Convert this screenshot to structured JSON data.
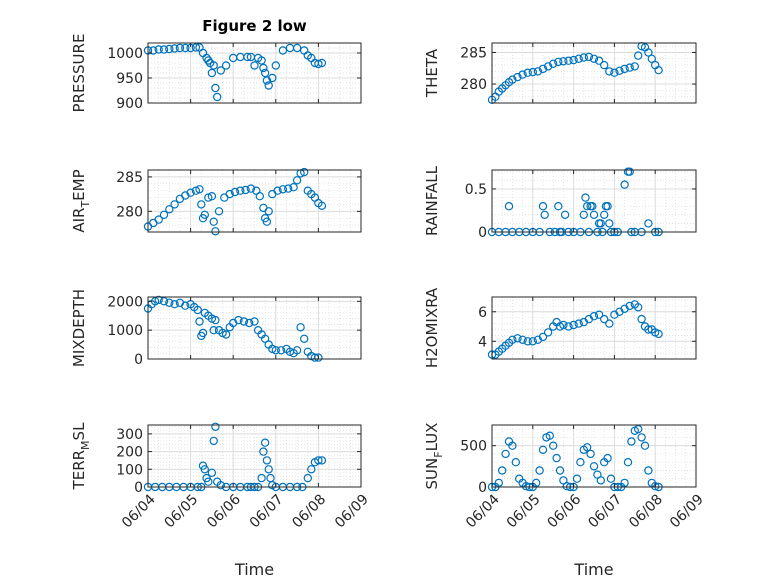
{
  "figure_title": "Figure 2 low",
  "marker_color": "#0072BD",
  "chart_data": [
    {
      "type": "scatter",
      "ylabel": "PRESSURE",
      "ylim": [
        900,
        1020
      ],
      "yticks": [
        900,
        950,
        1000
      ],
      "xticks_shown": false,
      "title": "Figure 2 low",
      "x": [
        "06/04 00:00",
        "06/04 03:00",
        "06/04 06:00",
        "06/04 09:00",
        "06/04 12:00",
        "06/04 15:00",
        "06/04 18:00",
        "06/04 21:00",
        "06/05 00:00",
        "06/05 03:00",
        "06/05 05:00",
        "06/05 07:00",
        "06/05 09:00",
        "06/05 10:00",
        "06/05 11:00",
        "06/05 12:00",
        "06/05 13:00",
        "06/05 14:00",
        "06/05 15:00",
        "06/05 17:00",
        "06/05 20:00",
        "06/06 00:00",
        "06/06 04:00",
        "06/06 08:00",
        "06/06 10:00",
        "06/06 12:00",
        "06/06 14:00",
        "06/06 16:00",
        "06/06 17:00",
        "06/06 18:00",
        "06/06 19:00",
        "06/06 20:00",
        "06/06 22:00",
        "06/07 00:00",
        "06/07 04:00",
        "06/07 08:00",
        "06/07 12:00",
        "06/07 16:00",
        "06/07 18:00",
        "06/07 20:00",
        "06/07 22:00",
        "06/08 00:00",
        "06/08 02:00"
      ],
      "y": [
        1005,
        1005,
        1007,
        1007,
        1008,
        1009,
        1010,
        1010,
        1010,
        1011,
        1011,
        1000,
        990,
        985,
        980,
        960,
        975,
        930,
        912,
        965,
        975,
        990,
        992,
        992,
        992,
        975,
        990,
        985,
        970,
        960,
        945,
        935,
        950,
        975,
        1005,
        1010,
        1010,
        1005,
        995,
        990,
        980,
        978,
        980
      ]
    },
    {
      "type": "scatter",
      "ylabel": "THETA",
      "ylim": [
        277,
        286.5
      ],
      "yticks": [
        280,
        285
      ],
      "xticks_shown": false,
      "x": [
        "06/04 00:00",
        "06/04 02:00",
        "06/04 04:00",
        "06/04 06:00",
        "06/04 08:00",
        "06/04 10:00",
        "06/04 12:00",
        "06/04 15:00",
        "06/04 18:00",
        "06/04 21:00",
        "06/05 00:00",
        "06/05 03:00",
        "06/05 06:00",
        "06/05 09:00",
        "06/05 12:00",
        "06/05 15:00",
        "06/05 18:00",
        "06/05 21:00",
        "06/06 00:00",
        "06/06 03:00",
        "06/06 06:00",
        "06/06 09:00",
        "06/06 12:00",
        "06/06 15:00",
        "06/06 18:00",
        "06/06 21:00",
        "06/07 00:00",
        "06/07 03:00",
        "06/07 06:00",
        "06/07 09:00",
        "06/07 12:00",
        "06/07 14:00",
        "06/07 16:00",
        "06/07 18:00",
        "06/07 20:00",
        "06/07 22:00",
        "06/08 00:00",
        "06/08 02:00"
      ],
      "y": [
        277.5,
        278,
        278.8,
        279.3,
        279.8,
        280.3,
        280.7,
        281.1,
        281.5,
        281.8,
        281.9,
        282,
        282.4,
        282.8,
        283.2,
        283.5,
        283.6,
        283.7,
        283.8,
        284,
        284.2,
        284.3,
        284,
        283.7,
        283,
        282,
        281.8,
        282.1,
        282.4,
        282.6,
        282.8,
        284.5,
        286,
        285.8,
        285,
        284,
        283,
        282.2
      ]
    },
    {
      "type": "scatter",
      "ylabel": "AIR_TEMP",
      "ylim": [
        277,
        286
      ],
      "yticks": [
        280,
        285
      ],
      "xticks_shown": false,
      "x": [
        "06/04 00:00",
        "06/04 03:00",
        "06/04 06:00",
        "06/04 09:00",
        "06/04 12:00",
        "06/04 15:00",
        "06/04 18:00",
        "06/04 21:00",
        "06/05 00:00",
        "06/05 03:00",
        "06/05 05:00",
        "06/05 06:00",
        "06/05 07:00",
        "06/05 08:00",
        "06/05 10:00",
        "06/05 12:00",
        "06/05 13:00",
        "06/05 14:00",
        "06/05 16:00",
        "06/05 19:00",
        "06/05 22:00",
        "06/06 01:00",
        "06/06 04:00",
        "06/06 07:00",
        "06/06 10:00",
        "06/06 13:00",
        "06/06 15:00",
        "06/06 17:00",
        "06/06 18:00",
        "06/06 19:00",
        "06/06 20:00",
        "06/06 22:00",
        "06/07 01:00",
        "06/07 04:00",
        "06/07 07:00",
        "06/07 10:00",
        "06/07 12:00",
        "06/07 14:00",
        "06/07 16:00",
        "06/07 18:00",
        "06/07 20:00",
        "06/07 22:00",
        "06/08 00:00",
        "06/08 02:00"
      ],
      "y": [
        277.8,
        278.3,
        278.8,
        279.5,
        280.3,
        281,
        281.8,
        282.3,
        282.7,
        283,
        283.2,
        281,
        279,
        279.5,
        282,
        282.2,
        278.5,
        277.1,
        280,
        282,
        282.5,
        282.8,
        283,
        283.1,
        283.3,
        283,
        282.2,
        280.5,
        279,
        278.5,
        280,
        282.5,
        283,
        283.2,
        283.3,
        283.5,
        284.5,
        285.5,
        285.7,
        283,
        282.5,
        282,
        281.2,
        280.8
      ]
    },
    {
      "type": "scatter",
      "ylabel": "RAINFALL",
      "ylim": [
        0,
        0.72
      ],
      "yticks": [
        0,
        0.5
      ],
      "xticks_shown": false,
      "x": [
        "06/04 00:00",
        "06/04 04:00",
        "06/04 08:00",
        "06/04 10:00",
        "06/04 12:00",
        "06/04 16:00",
        "06/04 20:00",
        "06/05 00:00",
        "06/05 04:00",
        "06/05 06:00",
        "06/05 07:00",
        "06/05 10:00",
        "06/05 13:00",
        "06/05 15:00",
        "06/05 16:00",
        "06/05 17:00",
        "06/05 19:00",
        "06/05 21:00",
        "06/06 00:00",
        "06/06 04:00",
        "06/06 06:00",
        "06/06 07:00",
        "06/06 08:00",
        "06/06 09:00",
        "06/06 10:00",
        "06/06 11:00",
        "06/06 12:00",
        "06/06 14:00",
        "06/06 15:00",
        "06/06 16:00",
        "06/06 17:00",
        "06/06 18:00",
        "06/06 19:00",
        "06/06 20:00",
        "06/06 21:00",
        "06/06 22:00",
        "06/07 00:00",
        "06/07 02:00",
        "06/07 06:00",
        "06/07 08:00",
        "06/07 09:00",
        "06/07 10:00",
        "06/07 12:00",
        "06/07 16:00",
        "06/07 20:00",
        "06/08 00:00",
        "06/08 02:00"
      ],
      "y": [
        0,
        0,
        0,
        0.3,
        0,
        0,
        0,
        0,
        0,
        0.3,
        0.2,
        0,
        0,
        0.3,
        0,
        0,
        0.2,
        0,
        0,
        0,
        0.2,
        0.4,
        0.3,
        0,
        0.3,
        0.3,
        0.2,
        0,
        0.1,
        0.1,
        0,
        0.2,
        0.3,
        0.3,
        0.1,
        0,
        0,
        0,
        0.55,
        0.7,
        0.7,
        0,
        0,
        0,
        0.1,
        0,
        0
      ]
    },
    {
      "type": "scatter",
      "ylabel": "MIXDEPTH",
      "ylim": [
        0,
        2150
      ],
      "yticks": [
        0,
        1000,
        2000
      ],
      "xticks_shown": false,
      "x": [
        "06/04 00:00",
        "06/04 02:00",
        "06/04 04:00",
        "06/04 06:00",
        "06/04 09:00",
        "06/04 12:00",
        "06/04 15:00",
        "06/04 18:00",
        "06/04 21:00",
        "06/05 00:00",
        "06/05 02:00",
        "06/05 04:00",
        "06/05 05:00",
        "06/05 06:00",
        "06/05 07:00",
        "06/05 08:00",
        "06/05 10:00",
        "06/05 12:00",
        "06/05 13:00",
        "06/05 14:00",
        "06/05 16:00",
        "06/05 18:00",
        "06/05 20:00",
        "06/05 22:00",
        "06/06 00:00",
        "06/06 03:00",
        "06/06 06:00",
        "06/06 09:00",
        "06/06 12:00",
        "06/06 14:00",
        "06/06 16:00",
        "06/06 18:00",
        "06/06 20:00",
        "06/06 22:00",
        "06/07 00:00",
        "06/07 03:00",
        "06/07 06:00",
        "06/07 08:00",
        "06/07 10:00",
        "06/07 12:00",
        "06/07 14:00",
        "06/07 16:00",
        "06/07 18:00",
        "06/07 20:00",
        "06/07 22:00",
        "06/08 00:00"
      ],
      "y": [
        1750,
        1900,
        2000,
        2050,
        2000,
        1950,
        1900,
        1950,
        1850,
        1900,
        1800,
        1700,
        1300,
        800,
        900,
        1600,
        1500,
        1400,
        1000,
        1350,
        1000,
        900,
        850,
        1100,
        1250,
        1350,
        1300,
        1250,
        1300,
        1000,
        850,
        700,
        500,
        350,
        300,
        300,
        350,
        250,
        200,
        300,
        1100,
        700,
        250,
        100,
        50,
        50
      ]
    },
    {
      "type": "scatter",
      "ylabel": "H2OMIXRA",
      "ylim": [
        2.8,
        7
      ],
      "yticks": [
        4,
        6
      ],
      "xticks_shown": false,
      "x": [
        "06/04 00:00",
        "06/04 02:00",
        "06/04 04:00",
        "06/04 06:00",
        "06/04 08:00",
        "06/04 10:00",
        "06/04 12:00",
        "06/04 15:00",
        "06/04 18:00",
        "06/04 21:00",
        "06/05 00:00",
        "06/05 03:00",
        "06/05 06:00",
        "06/05 09:00",
        "06/05 12:00",
        "06/05 14:00",
        "06/05 16:00",
        "06/05 18:00",
        "06/05 21:00",
        "06/06 00:00",
        "06/06 03:00",
        "06/06 06:00",
        "06/06 09:00",
        "06/06 12:00",
        "06/06 15:00",
        "06/06 18:00",
        "06/06 21:00",
        "06/07 00:00",
        "06/07 03:00",
        "06/07 06:00",
        "06/07 09:00",
        "06/07 12:00",
        "06/07 14:00",
        "06/07 16:00",
        "06/07 18:00",
        "06/07 20:00",
        "06/07 22:00",
        "06/08 00:00",
        "06/08 02:00"
      ],
      "y": [
        3.1,
        3.1,
        3.3,
        3.5,
        3.7,
        3.9,
        4.1,
        4.2,
        4.1,
        4.0,
        4.0,
        4.1,
        4.3,
        4.6,
        5.0,
        5.3,
        5.0,
        5.1,
        5.0,
        5.1,
        5.2,
        5.3,
        5.5,
        5.7,
        5.8,
        5.5,
        5.2,
        5.8,
        6.0,
        6.2,
        6.4,
        6.5,
        6.3,
        5.5,
        5.0,
        4.8,
        4.8,
        4.6,
        4.5
      ]
    },
    {
      "type": "scatter",
      "ylabel": "TERR_MSL",
      "ylim": [
        0,
        350
      ],
      "yticks": [
        0,
        100,
        200,
        300
      ],
      "xticks_shown": true,
      "x": [
        "06/04 00:00",
        "06/04 04:00",
        "06/04 08:00",
        "06/04 12:00",
        "06/04 16:00",
        "06/04 20:00",
        "06/05 00:00",
        "06/05 04:00",
        "06/05 06:00",
        "06/05 07:00",
        "06/05 08:00",
        "06/05 09:00",
        "06/05 10:00",
        "06/05 12:00",
        "06/05 13:00",
        "06/05 14:00",
        "06/05 15:00",
        "06/05 17:00",
        "06/05 20:00",
        "06/06 00:00",
        "06/06 04:00",
        "06/06 08:00",
        "06/06 10:00",
        "06/06 12:00",
        "06/06 14:00",
        "06/06 16:00",
        "06/06 17:00",
        "06/06 18:00",
        "06/06 19:00",
        "06/06 20:00",
        "06/06 21:00",
        "06/06 22:00",
        "06/07 00:00",
        "06/07 04:00",
        "06/07 08:00",
        "06/07 12:00",
        "06/07 15:00",
        "06/07 18:00",
        "06/07 20:00",
        "06/07 22:00",
        "06/08 00:00",
        "06/08 02:00"
      ],
      "y": [
        0,
        0,
        0,
        0,
        0,
        0,
        0,
        0,
        0,
        120,
        100,
        50,
        30,
        80,
        260,
        340,
        30,
        10,
        0,
        0,
        0,
        0,
        0,
        0,
        0,
        50,
        200,
        250,
        150,
        100,
        50,
        10,
        0,
        0,
        0,
        0,
        0,
        50,
        100,
        140,
        150,
        150
      ],
      "xticks": [
        "06/04",
        "06/05",
        "06/06",
        "06/07",
        "06/08",
        "06/09"
      ],
      "xlabel": "Time"
    },
    {
      "type": "scatter",
      "ylabel": "SUN_FLUX",
      "ylim": [
        0,
        750
      ],
      "yticks": [
        0,
        500
      ],
      "xticks_shown": true,
      "x": [
        "06/04 00:00",
        "06/04 02:00",
        "06/04 04:00",
        "06/04 06:00",
        "06/04 08:00",
        "06/04 10:00",
        "06/04 12:00",
        "06/04 14:00",
        "06/04 16:00",
        "06/04 18:00",
        "06/04 20:00",
        "06/04 22:00",
        "06/05 00:00",
        "06/05 02:00",
        "06/05 04:00",
        "06/05 06:00",
        "06/05 08:00",
        "06/05 10:00",
        "06/05 12:00",
        "06/05 14:00",
        "06/05 16:00",
        "06/05 18:00",
        "06/05 20:00",
        "06/05 22:00",
        "06/06 00:00",
        "06/06 02:00",
        "06/06 04:00",
        "06/06 06:00",
        "06/06 08:00",
        "06/06 10:00",
        "06/06 12:00",
        "06/06 14:00",
        "06/06 16:00",
        "06/06 18:00",
        "06/06 20:00",
        "06/06 22:00",
        "06/07 00:00",
        "06/07 02:00",
        "06/07 04:00",
        "06/07 06:00",
        "06/07 08:00",
        "06/07 10:00",
        "06/07 12:00",
        "06/07 14:00",
        "06/07 16:00",
        "06/07 18:00",
        "06/07 20:00",
        "06/07 22:00",
        "06/08 00:00",
        "06/08 02:00"
      ],
      "y": [
        0,
        0,
        50,
        200,
        400,
        550,
        500,
        300,
        100,
        50,
        10,
        0,
        0,
        50,
        200,
        450,
        600,
        620,
        500,
        350,
        200,
        80,
        10,
        0,
        0,
        100,
        300,
        450,
        480,
        400,
        250,
        150,
        80,
        300,
        350,
        100,
        0,
        0,
        0,
        50,
        300,
        550,
        680,
        700,
        600,
        500,
        200,
        50,
        10,
        0
      ],
      "xticks": [
        "06/04",
        "06/05",
        "06/06",
        "06/07",
        "06/08",
        "06/09"
      ],
      "xlabel": "Time"
    }
  ]
}
